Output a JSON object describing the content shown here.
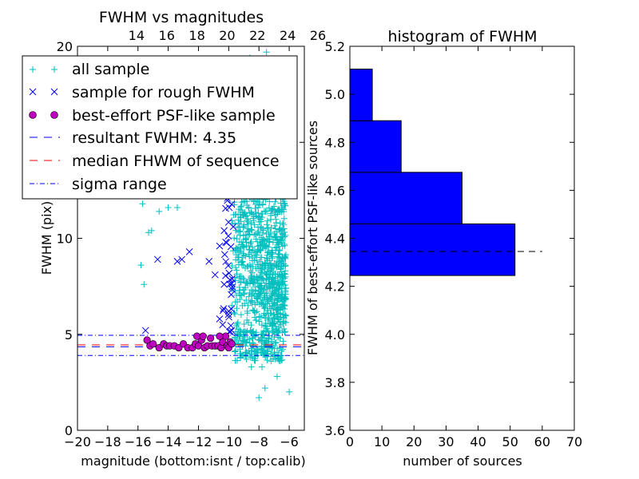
{
  "chart_data": [
    {
      "type": "scatter",
      "title": "FWHM vs magnitudes",
      "xlabel": "magnitude (bottom:isnt / top:calib)",
      "ylabel": "FWHM (pix)",
      "xlim": [
        -20,
        -5
      ],
      "ylim": [
        0,
        20
      ],
      "x_ticks": [
        -20,
        -18,
        -16,
        -14,
        -12,
        -10,
        -8,
        -6
      ],
      "x_tick_labels": [
        "−20",
        "−18",
        "−16",
        "−14",
        "−12",
        "−10",
        "−8",
        "−6"
      ],
      "y_ticks": [
        0,
        5,
        10,
        15,
        20
      ],
      "y_tick_labels": [
        "0",
        "5",
        "10",
        "15",
        "20"
      ],
      "top_ticks": [
        14,
        16,
        18,
        20,
        22,
        24,
        26
      ],
      "top_tick_labels": [
        "14",
        "16",
        "18",
        "20",
        "22",
        "24",
        "26"
      ],
      "top_offset": 30.1,
      "legend_placement": "upper-left",
      "series": [
        {
          "name": "all sample",
          "marker": "+",
          "color": "#00bfbf",
          "points": [
            [
              -15.8,
              8.6
            ],
            [
              -15.6,
              7.6
            ],
            [
              -15.3,
              10.3
            ],
            [
              -15.1,
              10.4
            ],
            [
              -15.7,
              11.8
            ],
            [
              -14.6,
              11.4
            ],
            [
              -14.0,
              11.6
            ],
            [
              -13.4,
              11.6
            ],
            [
              -8.6,
              19.4
            ],
            [
              -7.5,
              19.7
            ],
            [
              -6.6,
              13.2
            ],
            [
              -6.5,
              11.6
            ],
            [
              -6.3,
              11.7
            ],
            [
              -6.0,
              2.0
            ],
            [
              -6.8,
              2.8
            ],
            [
              -7.6,
              2.2
            ],
            [
              -8.0,
              1.7
            ],
            [
              -7.8,
              3.3
            ],
            [
              -8.5,
              3.3
            ],
            [
              -7.2,
              3.6
            ],
            [
              -7.0,
              3.9
            ],
            [
              -6.5,
              3.9
            ]
          ]
        },
        {
          "name": "sample for rough FWHM",
          "marker": "x",
          "color": "#0000ff",
          "points": [
            [
              -15.5,
              5.2
            ],
            [
              -14.7,
              8.9
            ],
            [
              -13.4,
              8.8
            ],
            [
              -13.1,
              8.9
            ],
            [
              -12.7,
              13.2
            ],
            [
              -12.6,
              9.3
            ],
            [
              -11.3,
              8.8
            ],
            [
              -10.9,
              8.1
            ],
            [
              -10.3,
              7.6
            ],
            [
              -10.6,
              9.6
            ],
            [
              -10.3,
              10.4
            ],
            [
              -10.2,
              9.8
            ],
            [
              -10.0,
              6.2
            ],
            [
              -9.8,
              5.2
            ],
            [
              -10.4,
              5.5
            ],
            [
              -10.6,
              5.8
            ]
          ]
        },
        {
          "name": "best-effort PSF-like sample",
          "marker": "o",
          "color": "#bf00bf",
          "points": [
            [
              -15.4,
              4.7
            ],
            [
              -15.2,
              4.4
            ],
            [
              -15.0,
              4.5
            ],
            [
              -14.6,
              4.3
            ],
            [
              -14.3,
              4.5
            ],
            [
              -14.1,
              4.4
            ],
            [
              -13.9,
              4.4
            ],
            [
              -13.6,
              4.4
            ],
            [
              -13.3,
              4.3
            ],
            [
              -13.0,
              4.5
            ],
            [
              -12.7,
              4.3
            ],
            [
              -12.4,
              4.3
            ],
            [
              -12.2,
              4.5
            ],
            [
              -12.0,
              4.4
            ],
            [
              -11.8,
              4.7
            ],
            [
              -11.6,
              4.3
            ],
            [
              -11.4,
              4.4
            ],
            [
              -11.1,
              4.4
            ],
            [
              -10.9,
              4.4
            ],
            [
              -10.7,
              4.4
            ],
            [
              -10.5,
              4.3
            ],
            [
              -10.4,
              4.6
            ],
            [
              -10.2,
              4.9
            ],
            [
              -10.1,
              4.4
            ],
            [
              -10.0,
              4.3
            ],
            [
              -9.9,
              4.6
            ],
            [
              -9.8,
              4.5
            ],
            [
              -12.1,
              4.9
            ],
            [
              -11.7,
              4.9
            ],
            [
              -11.2,
              4.8
            ],
            [
              -10.6,
              4.9
            ]
          ]
        }
      ],
      "hlines": [
        {
          "name": "resultant FWHM: 4.35",
          "y": 4.35,
          "color": "#0000ff",
          "style": "dashed"
        },
        {
          "name": "median FHWM of sequence",
          "y": 4.45,
          "color": "#ff0000",
          "style": "dashed"
        },
        {
          "name": "sigma range",
          "y": 4.95,
          "color": "#0000ff",
          "style": "dashdot"
        },
        {
          "name": "",
          "y": 3.9,
          "color": "#0000ff",
          "style": "dashdot"
        }
      ]
    },
    {
      "type": "bar",
      "orientation": "horizontal",
      "title": "histogram of FWHM",
      "xlabel": "number of sources",
      "ylabel": "FWHM of best-effort PSF-like sources",
      "xlim": [
        0,
        70
      ],
      "ylim": [
        3.6,
        5.2
      ],
      "x_ticks": [
        0,
        10,
        20,
        30,
        40,
        50,
        60,
        70
      ],
      "x_tick_labels": [
        "0",
        "10",
        "20",
        "30",
        "40",
        "50",
        "60",
        "70"
      ],
      "y_ticks": [
        3.6,
        3.8,
        4.0,
        4.2,
        4.4,
        4.6,
        4.8,
        5.0,
        5.2
      ],
      "y_tick_labels": [
        "3.6",
        "3.8",
        "4.0",
        "4.2",
        "4.4",
        "4.6",
        "4.8",
        "5.0",
        "5.2"
      ],
      "bins": [
        {
          "y0": 4.245,
          "y1": 4.46,
          "count": 51.5
        },
        {
          "y0": 4.46,
          "y1": 4.675,
          "count": 35
        },
        {
          "y0": 4.675,
          "y1": 4.89,
          "count": 16
        },
        {
          "y0": 4.89,
          "y1": 5.105,
          "count": 7
        }
      ],
      "bar_color": "#0000ff",
      "hline": {
        "y": 4.345,
        "x0": 0,
        "x1": 60,
        "style": "dashed",
        "color": "#000000"
      }
    }
  ]
}
